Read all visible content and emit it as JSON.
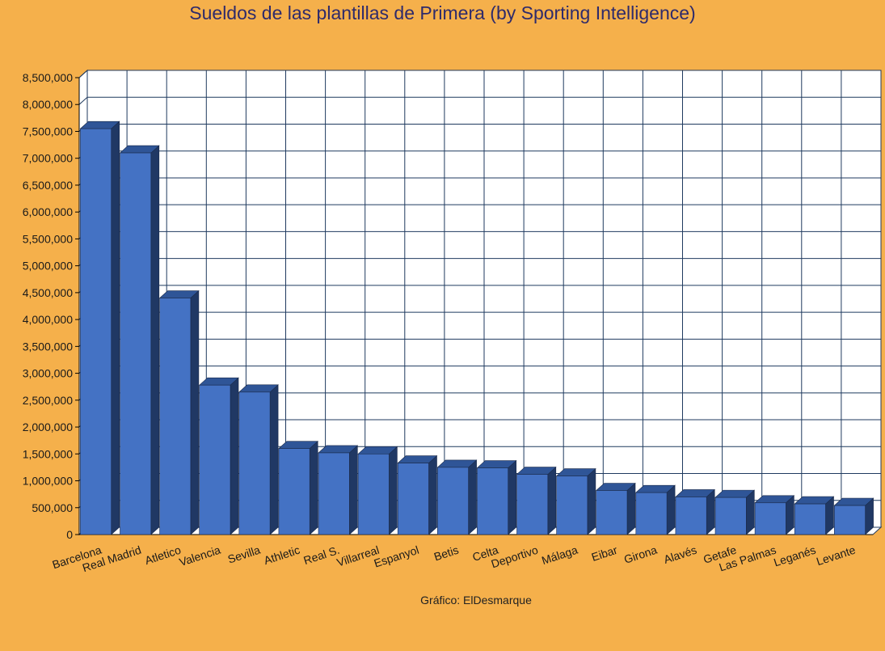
{
  "chart_data": {
    "type": "bar",
    "title": "Sueldos de las plantillas de Primera (by Sporting Intelligence)",
    "credit": "Gráfico: ElDesmarque",
    "categories": [
      "Barcelona",
      "Real Madrid",
      "Atletico",
      "Valencia",
      "Sevilla",
      "Athletic",
      "Real S.",
      "Villarreal",
      "Espanyol",
      "Betis",
      "Celta",
      "Deportivo",
      "Málaga",
      "Eibar",
      "Girona",
      "Alavés",
      "Getafe",
      "Las Palmas",
      "Leganés",
      "Levante"
    ],
    "values": [
      7550000,
      7100000,
      4400000,
      2780000,
      2650000,
      1600000,
      1520000,
      1500000,
      1330000,
      1250000,
      1240000,
      1120000,
      1090000,
      820000,
      780000,
      700000,
      690000,
      590000,
      570000,
      540000
    ],
    "ylim": [
      0,
      8500000
    ],
    "ytick_step": 500000,
    "ytick_labels": [
      "0",
      "500,000",
      "1,000,000",
      "1,500,000",
      "2,000,000",
      "2,500,000",
      "3,000,000",
      "3,500,000",
      "4,000,000",
      "4,500,000",
      "5,000,000",
      "5,500,000",
      "6,000,000",
      "6,500,000",
      "7,000,000",
      "7,500,000",
      "8,000,000",
      "8,500,000"
    ],
    "xlabel": "",
    "ylabel": "",
    "grid": true,
    "legend": "none"
  },
  "colors": {
    "background": "#F5B04B",
    "plot_background": "#FFFFFF",
    "grid": "#1F3A5F",
    "bar_front": "#4472C4",
    "bar_top": "#2F5597",
    "bar_side": "#203864",
    "title": "#2E2A6B"
  }
}
